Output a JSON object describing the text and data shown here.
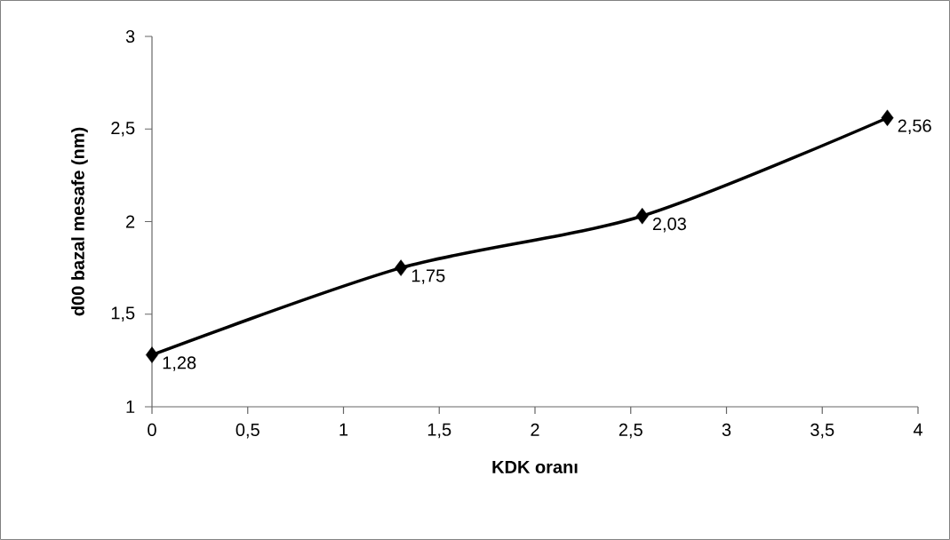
{
  "chart_data": {
    "type": "line",
    "xlabel": "KDK oranı",
    "ylabel": "d00 bazal mesafe (nm)",
    "x": [
      0,
      1.3,
      2.56,
      3.84
    ],
    "series": [
      {
        "color": "#000000",
        "values": [
          1.28,
          1.75,
          2.03,
          2.56
        ],
        "value_labels": [
          "1,28",
          "1,75",
          "2,03",
          "2,56"
        ]
      }
    ],
    "xlim": [
      0,
      4
    ],
    "xticks": [
      0,
      {
        "value": 0.5,
        "label": "0,5"
      },
      1,
      {
        "value": 1.5,
        "label": "1,5"
      },
      2,
      {
        "value": 2.5,
        "label": "2,5"
      },
      3,
      {
        "value": 3.5,
        "label": "3,5"
      },
      4
    ],
    "ylim": [
      1,
      3
    ],
    "yticks": [
      1,
      {
        "value": 1.5,
        "label": "1,5"
      },
      2,
      {
        "value": 2.5,
        "label": "2,5"
      },
      3
    ],
    "grid": false,
    "marker": "diamond",
    "line_style": "solid"
  }
}
